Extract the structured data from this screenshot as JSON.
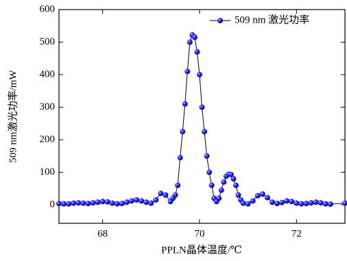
{
  "chart_data": {
    "type": "line",
    "xlabel": "PPLN晶体温度/℃",
    "ylabel": "509 nm激光功率/mW",
    "x": [
      67.1,
      67.2,
      67.3,
      67.4,
      67.5,
      67.6,
      67.7,
      67.8,
      67.9,
      68.0,
      68.1,
      68.2,
      68.3,
      68.4,
      68.5,
      68.6,
      68.7,
      68.8,
      68.9,
      69.0,
      69.1,
      69.2,
      69.3,
      69.4,
      69.45,
      69.5,
      69.55,
      69.6,
      69.65,
      69.7,
      69.75,
      69.8,
      69.85,
      69.9,
      69.95,
      70.0,
      70.05,
      70.1,
      70.15,
      70.2,
      70.25,
      70.3,
      70.35,
      70.4,
      70.45,
      70.5,
      70.55,
      70.6,
      70.65,
      70.7,
      70.75,
      70.8,
      70.85,
      70.9,
      71.0,
      71.1,
      71.2,
      71.3,
      71.4,
      71.5,
      71.6,
      71.7,
      71.8,
      71.9,
      72.0,
      72.1,
      72.2,
      72.3,
      72.4,
      72.5,
      72.6,
      72.7,
      73.0
    ],
    "series": [
      {
        "name": "509 nm 激光功率",
        "color": "#1010e0",
        "line_color": "#000000",
        "values": [
          4,
          3,
          3,
          5,
          6,
          5,
          4,
          6,
          8,
          10,
          9,
          5,
          3,
          4,
          8,
          12,
          15,
          12,
          8,
          5,
          15,
          35,
          30,
          10,
          20,
          30,
          60,
          145,
          225,
          310,
          410,
          500,
          522,
          515,
          470,
          400,
          300,
          225,
          150,
          100,
          60,
          20,
          10,
          20,
          45,
          70,
          88,
          94,
          93,
          80,
          60,
          30,
          15,
          5,
          3,
          12,
          28,
          33,
          22,
          8,
          4,
          7,
          12,
          10,
          5,
          3,
          4,
          6,
          8,
          6,
          3,
          2,
          5
        ]
      }
    ],
    "xlim": [
      67.1,
      73
    ],
    "ylim": [
      -57,
      600
    ],
    "xticks": [
      68,
      70,
      72
    ],
    "yticks": [
      0,
      100,
      200,
      300,
      400,
      500,
      600
    ],
    "legend": "upper right"
  }
}
